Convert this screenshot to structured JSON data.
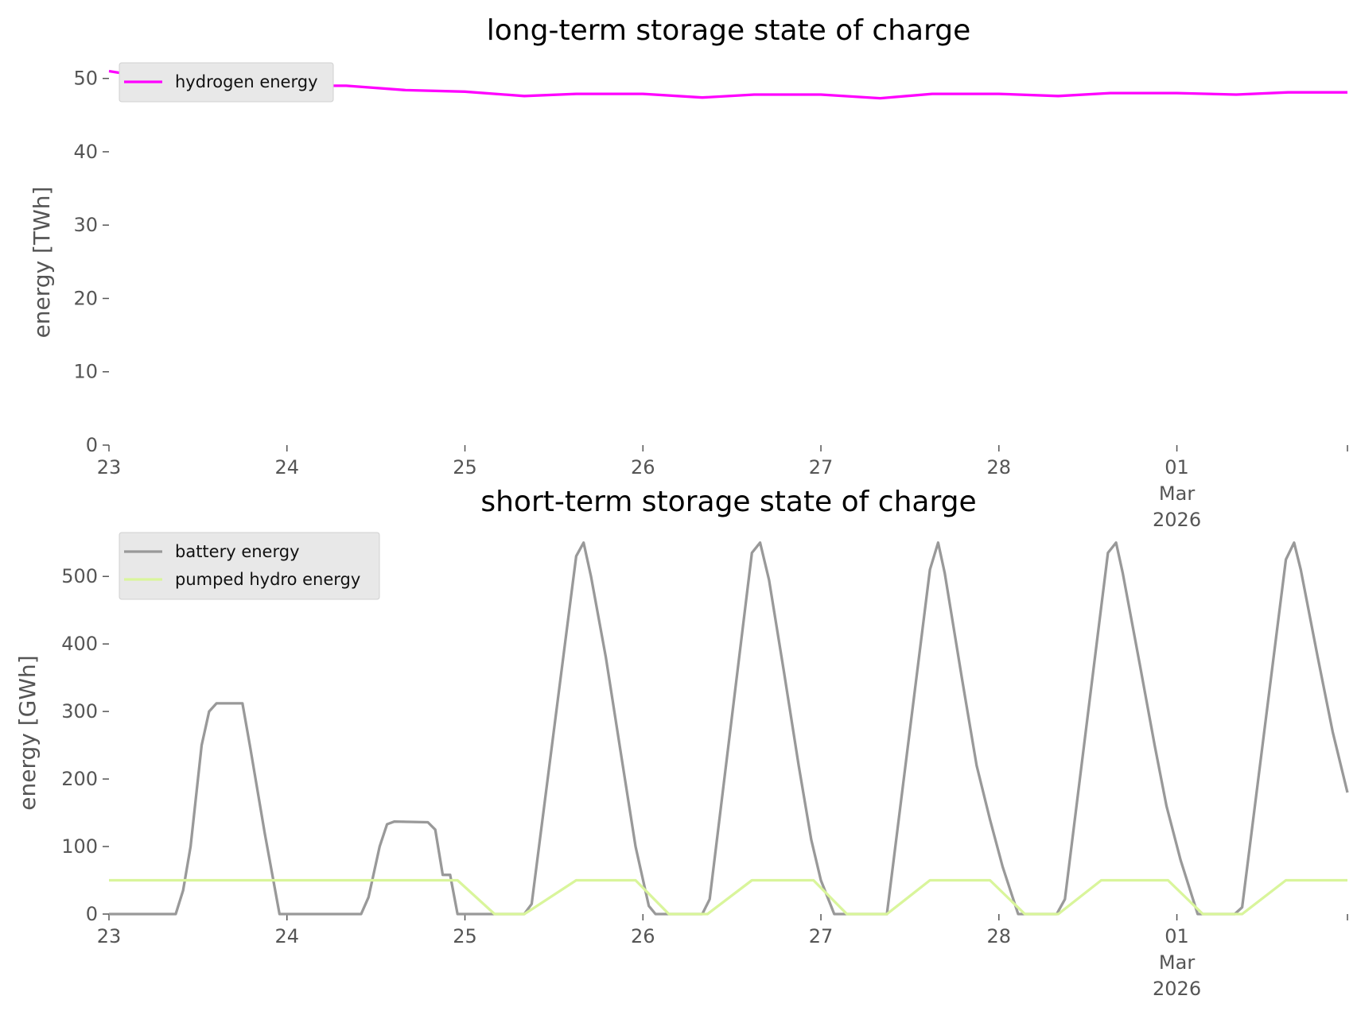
{
  "chart_data": [
    {
      "type": "line",
      "title": "long-term storage state of charge",
      "xlabel": "",
      "ylabel": "energy [TWh]",
      "x_units": "hours since 23 Feb 2026 00:00",
      "xlim": [
        0,
        167
      ],
      "ylim": [
        0,
        53
      ],
      "yticks": [
        0,
        10,
        20,
        30,
        40,
        50
      ],
      "xticks": [
        {
          "x": 0,
          "label": [
            "23"
          ]
        },
        {
          "x": 24,
          "label": [
            "24"
          ]
        },
        {
          "x": 48,
          "label": [
            "25"
          ]
        },
        {
          "x": 72,
          "label": [
            "26"
          ]
        },
        {
          "x": 96,
          "label": [
            "27"
          ]
        },
        {
          "x": 120,
          "label": [
            "28"
          ]
        },
        {
          "x": 144,
          "label": [
            "01",
            "Mar",
            "2026"
          ]
        }
      ],
      "grid": false,
      "legend_position": "top-left",
      "series": [
        {
          "name": "hydrogen energy",
          "color": "#ff00ff",
          "points": [
            [
              0,
              51
            ],
            [
              8,
              49.7
            ],
            [
              16,
              49
            ],
            [
              24,
              49
            ],
            [
              32,
              49
            ],
            [
              40,
              48.4
            ],
            [
              48,
              48.2
            ],
            [
              56,
              47.6
            ],
            [
              63,
              47.9
            ],
            [
              72,
              47.9
            ],
            [
              80,
              47.4
            ],
            [
              87,
              47.8
            ],
            [
              96,
              47.8
            ],
            [
              104,
              47.3
            ],
            [
              111,
              47.9
            ],
            [
              120,
              47.9
            ],
            [
              128,
              47.6
            ],
            [
              135,
              48
            ],
            [
              144,
              48
            ],
            [
              152,
              47.8
            ],
            [
              159,
              48.1
            ],
            [
              167,
              48.1
            ]
          ]
        }
      ]
    },
    {
      "type": "line",
      "title": "short-term storage state of charge",
      "xlabel": "",
      "ylabel": "energy [GWh]",
      "x_units": "hours since 23 Feb 2026 00:00",
      "xlim": [
        0,
        167
      ],
      "ylim": [
        0,
        565
      ],
      "yticks": [
        0,
        100,
        200,
        300,
        400,
        500
      ],
      "xticks": [
        {
          "x": 0,
          "label": [
            "23"
          ]
        },
        {
          "x": 24,
          "label": [
            "24"
          ]
        },
        {
          "x": 48,
          "label": [
            "25"
          ]
        },
        {
          "x": 72,
          "label": [
            "26"
          ]
        },
        {
          "x": 96,
          "label": [
            "27"
          ]
        },
        {
          "x": 120,
          "label": [
            "28"
          ]
        },
        {
          "x": 144,
          "label": [
            "01",
            "Mar",
            "2026"
          ]
        }
      ],
      "grid": false,
      "legend_position": "top-left",
      "series": [
        {
          "name": "battery energy",
          "color": "#999999",
          "points": [
            [
              0,
              0
            ],
            [
              9,
              0
            ],
            [
              10,
              35
            ],
            [
              11,
              100
            ],
            [
              12.5,
              250
            ],
            [
              13.5,
              300
            ],
            [
              14.5,
              312
            ],
            [
              18,
              312
            ],
            [
              19,
              250
            ],
            [
              21,
              120
            ],
            [
              23,
              0
            ],
            [
              34,
              0
            ],
            [
              35,
              25
            ],
            [
              36.5,
              100
            ],
            [
              37.5,
              133
            ],
            [
              38.5,
              137
            ],
            [
              43,
              136
            ],
            [
              44,
              125
            ],
            [
              45,
              58
            ],
            [
              46,
              58
            ],
            [
              47,
              0
            ],
            [
              56,
              0
            ],
            [
              57,
              15
            ],
            [
              63,
              530
            ],
            [
              64,
              550
            ],
            [
              65,
              500
            ],
            [
              67,
              380
            ],
            [
              69,
              240
            ],
            [
              71,
              100
            ],
            [
              72.8,
              12
            ],
            [
              73.7,
              0
            ],
            [
              80,
              0
            ],
            [
              81,
              22
            ],
            [
              86.7,
              535
            ],
            [
              87.8,
              550
            ],
            [
              89,
              495
            ],
            [
              91,
              360
            ],
            [
              93,
              220
            ],
            [
              94.7,
              110
            ],
            [
              96,
              50
            ],
            [
              97.8,
              0
            ],
            [
              104.9,
              0
            ],
            [
              110.7,
              510
            ],
            [
              111.8,
              550
            ],
            [
              112.7,
              505
            ],
            [
              115,
              350
            ],
            [
              117,
              220
            ],
            [
              118.8,
              140
            ],
            [
              120.5,
              70
            ],
            [
              122.6,
              0
            ],
            [
              127.8,
              0
            ],
            [
              128.9,
              22
            ],
            [
              134.7,
              535
            ],
            [
              135.8,
              550
            ],
            [
              136.7,
              505
            ],
            [
              139,
              370
            ],
            [
              141,
              250
            ],
            [
              142.6,
              160
            ],
            [
              144.5,
              80
            ],
            [
              146.8,
              0
            ],
            [
              151.8,
              0
            ],
            [
              152.8,
              10
            ],
            [
              158.7,
              525
            ],
            [
              159.8,
              550
            ],
            [
              160.7,
              510
            ],
            [
              163,
              380
            ],
            [
              165,
              270
            ],
            [
              167,
              180
            ]
          ]
        },
        {
          "name": "pumped hydro energy",
          "color": "#d9f59b",
          "points": [
            [
              0,
              50
            ],
            [
              47,
              50
            ],
            [
              52,
              0
            ],
            [
              56,
              0
            ],
            [
              57,
              7
            ],
            [
              63,
              50
            ],
            [
              71,
              50
            ],
            [
              75.5,
              0
            ],
            [
              80.7,
              0
            ],
            [
              86.7,
              50
            ],
            [
              95,
              50
            ],
            [
              99.5,
              0
            ],
            [
              104.9,
              0
            ],
            [
              110.7,
              50
            ],
            [
              118.8,
              50
            ],
            [
              123.5,
              0
            ],
            [
              128,
              0
            ],
            [
              133.8,
              50
            ],
            [
              142.8,
              50
            ],
            [
              147.5,
              0
            ],
            [
              152.8,
              0
            ],
            [
              158.7,
              50
            ],
            [
              167,
              50
            ]
          ]
        }
      ]
    }
  ]
}
